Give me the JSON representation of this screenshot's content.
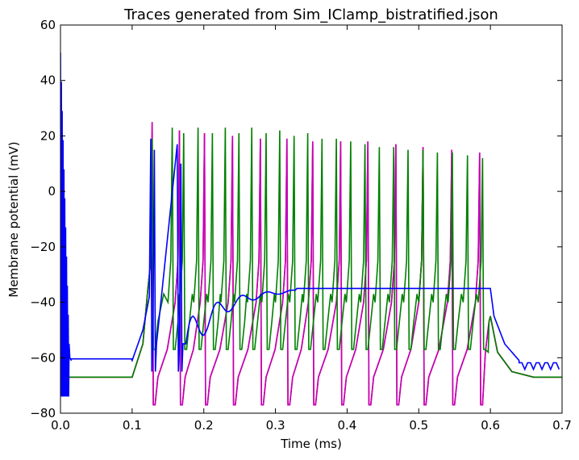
{
  "chart_data": {
    "type": "line",
    "title": "Traces generated from Sim_IClamp_bistratified.json",
    "xlabel": "Time (ms)",
    "ylabel": "Membrane potential (mV)",
    "xlim": [
      0.0,
      0.7
    ],
    "ylim": [
      -80,
      60
    ],
    "xticks": [
      0.0,
      0.1,
      0.2,
      0.3,
      0.4,
      0.5,
      0.6,
      0.7
    ],
    "xtick_labels": [
      "0.0",
      "0.1",
      "0.2",
      "0.3",
      "0.4",
      "0.5",
      "0.6",
      "0.7"
    ],
    "yticks": [
      -80,
      -60,
      -40,
      -20,
      0,
      20,
      40,
      60
    ],
    "ytick_labels": [
      "−80",
      "−60",
      "−40",
      "−20",
      "0",
      "20",
      "40",
      "60"
    ],
    "grid": false,
    "legend": false,
    "stim_start": 0.1,
    "stim_end": 0.6,
    "series": [
      {
        "color": "#ff0000",
        "rest": -67,
        "spike_times": [
          0.128,
          0.166,
          0.201,
          0.24,
          0.279,
          0.316,
          0.352,
          0.391,
          0.429,
          0.468,
          0.506,
          0.546,
          0.585
        ],
        "spike_peaks": [
          25,
          22,
          21,
          20,
          19,
          19,
          18,
          18,
          18,
          17,
          16,
          15,
          14
        ],
        "trough": -77
      },
      {
        "color": "#bf00bf",
        "rest": -67,
        "spike_times": [
          0.128,
          0.166,
          0.201,
          0.24,
          0.279,
          0.316,
          0.352,
          0.391,
          0.429,
          0.468,
          0.506,
          0.546,
          0.585
        ],
        "spike_peaks": [
          25,
          22,
          21,
          20,
          19,
          19,
          18,
          18,
          18,
          17,
          16,
          15,
          14
        ],
        "trough": -77
      },
      {
        "color": "#008000",
        "rest": -67,
        "spike_times": [
          0.128,
          0.156,
          0.172,
          0.192,
          0.212,
          0.23,
          0.249,
          0.267,
          0.287,
          0.306,
          0.326,
          0.345,
          0.365,
          0.385,
          0.405,
          0.425,
          0.445,
          0.465,
          0.485,
          0.506,
          0.526,
          0.547,
          0.568,
          0.589
        ],
        "spike_peaks": [
          19,
          23,
          21,
          23,
          21,
          23,
          21,
          23,
          21,
          22,
          20,
          21,
          19,
          19,
          18,
          17,
          16,
          16,
          15,
          15,
          14,
          14,
          13,
          12
        ],
        "trough": -57
      },
      {
        "color": "#0000ff",
        "rest": -61,
        "initial_burst_end": 0.012,
        "initial_burst_max": 50,
        "initial_burst_min": -74,
        "spike_times": [
          0.126,
          0.131,
          0.163,
          0.168
        ],
        "spike_peaks": [
          19,
          15,
          17,
          10
        ],
        "plateau": -35,
        "after_stim_tail": -63
      }
    ]
  }
}
